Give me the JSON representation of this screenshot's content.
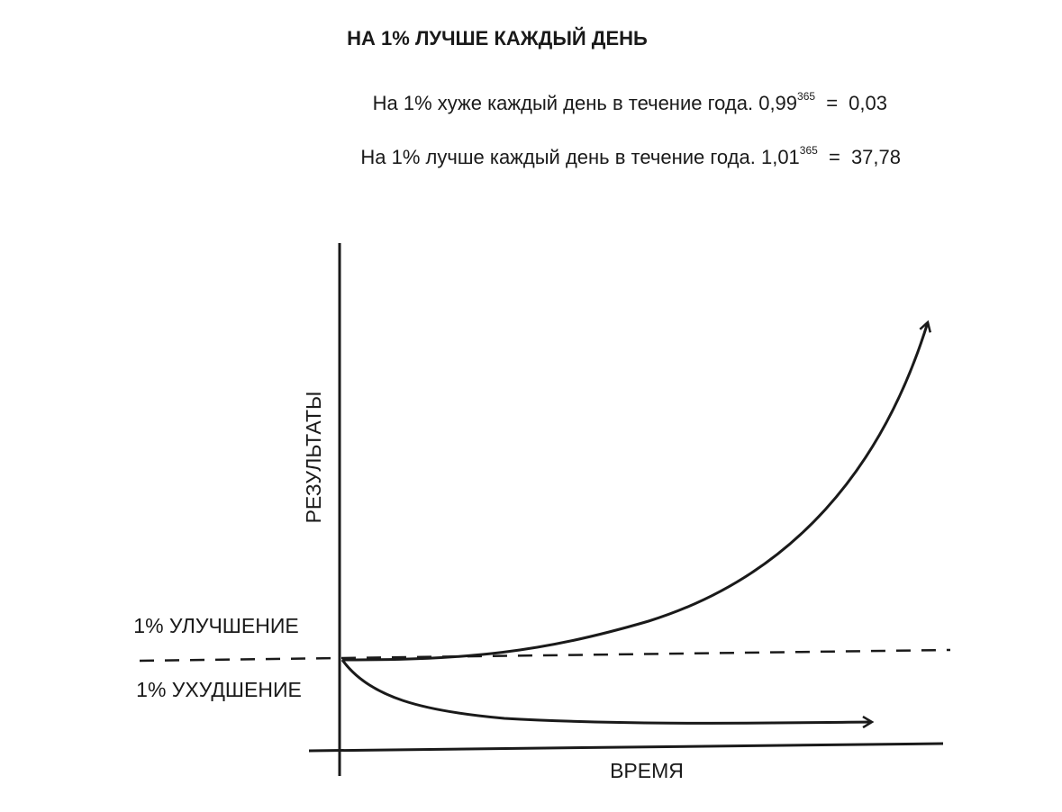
{
  "title": "НА 1% ЛУЧШЕ КАЖДЫЙ ДЕНЬ",
  "formulas": [
    {
      "text": "На 1% хуже каждый день в течение года.",
      "base": "0,99",
      "exponent": "365",
      "equals": "=",
      "result": "0,03"
    },
    {
      "text": "На 1% лучше каждый день в течение года.",
      "base": "1,01",
      "exponent": "365",
      "equals": "=",
      "result": "37,78"
    }
  ],
  "diagram": {
    "y_axis_label": "РЕЗУЛЬТАТЫ",
    "x_axis_label": "ВРЕМЯ",
    "upper_label": "1% УЛУЧШЕНИЕ",
    "lower_label": "1% УХУДШЕНИЕ"
  }
}
